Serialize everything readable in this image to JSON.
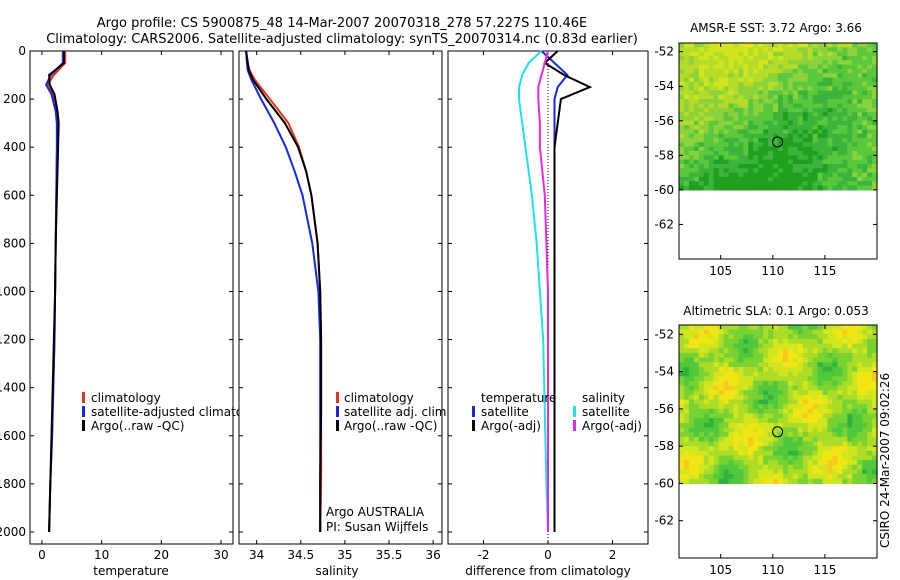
{
  "header": {
    "line1": "Argo profile: CS 5900875_48 14-Mar-2007 20070318_278 57.227S 110.46E",
    "line2": "Climatology: CARS2006. Satellite-adjusted climatology: synTS_20070314.nc (0.83d earlier)"
  },
  "footer_note": "CSIRO 24-Mar-2007 09:02:26",
  "colors": {
    "climatology": "#e8321e",
    "satellite": "#1428e6",
    "argo": "#000000",
    "cyan": "#22e0e8",
    "magenta": "#e628e6"
  },
  "chart_data": [
    {
      "type": "line",
      "panel": "temperature",
      "xlabel": "temperature",
      "xlim": [
        -2,
        32
      ],
      "ylim": [
        2050,
        0
      ],
      "xticks": [
        0,
        10,
        20,
        30
      ],
      "yticks": [
        0,
        200,
        400,
        600,
        800,
        1000,
        1200,
        1400,
        1600,
        1800,
        2000
      ],
      "depth": [
        0,
        50,
        100,
        140,
        180,
        250,
        300,
        400,
        600,
        800,
        1000,
        1200,
        1400,
        1600,
        1800,
        2000
      ],
      "series": [
        {
          "name": "climatology",
          "values": [
            3.9,
            3.9,
            2.0,
            0.9,
            1.8,
            2.4,
            2.5,
            2.5,
            2.4,
            2.3,
            2.2,
            2.1,
            1.9,
            1.7,
            1.4,
            1.2
          ]
        },
        {
          "name": "satellite-adjusted climatology",
          "values": [
            3.5,
            3.5,
            1.5,
            0.7,
            1.6,
            2.3,
            2.5,
            2.5,
            2.4,
            2.3,
            2.2,
            2.1,
            1.9,
            1.7,
            1.4,
            1.2
          ]
        },
        {
          "name": "Argo(..raw -QC)",
          "values": [
            3.7,
            3.7,
            1.2,
            1.3,
            2.1,
            2.6,
            2.8,
            2.7,
            2.5,
            2.3,
            2.2,
            2.0,
            1.8,
            1.6,
            1.4,
            1.2
          ]
        }
      ],
      "legend": [
        "climatology",
        "satellite-adjusted climatology",
        "Argo(..raw -QC)"
      ]
    },
    {
      "type": "line",
      "panel": "salinity",
      "xlabel": "salinity",
      "xlim": [
        33.8,
        36.1
      ],
      "ylim": [
        2050,
        0
      ],
      "xticks": [
        34,
        34.5,
        35,
        35.5,
        36
      ],
      "yticks": [
        0,
        200,
        400,
        600,
        800,
        1000,
        1200,
        1400,
        1600,
        1800,
        2000
      ],
      "depth": [
        0,
        50,
        80,
        120,
        200,
        300,
        400,
        500,
        600,
        800,
        1000,
        1200,
        1500,
        1800,
        2000
      ],
      "series": [
        {
          "name": "climatology",
          "values": [
            33.88,
            33.9,
            33.92,
            33.98,
            34.15,
            34.36,
            34.48,
            34.56,
            34.62,
            34.69,
            34.72,
            34.73,
            34.73,
            34.73,
            34.72
          ]
        },
        {
          "name": "satellite adj. clim.",
          "values": [
            33.88,
            33.89,
            33.9,
            33.94,
            34.05,
            34.2,
            34.33,
            34.43,
            34.52,
            34.63,
            34.7,
            34.72,
            34.72,
            34.72,
            34.72
          ]
        },
        {
          "name": "Argo(..raw -QC)",
          "values": [
            33.88,
            33.9,
            33.91,
            33.96,
            34.11,
            34.32,
            34.47,
            34.56,
            34.62,
            34.69,
            34.72,
            34.73,
            34.73,
            34.72,
            34.72
          ]
        }
      ],
      "legend": [
        "climatology",
        "satellite adj. clim.",
        "Argo(..raw -QC)"
      ],
      "annotation": [
        "Argo AUSTRALIA",
        "PI: Susan Wijffels"
      ]
    },
    {
      "type": "line",
      "panel": "difference",
      "xlabel": "difference from climatology",
      "xlim": [
        -3.1,
        3.1
      ],
      "ylim": [
        2050,
        0
      ],
      "xticks": [
        -2,
        0,
        2
      ],
      "yticks": [
        0,
        200,
        400,
        600,
        800,
        1000,
        1200,
        1400,
        1600,
        1800,
        2000
      ],
      "depth": [
        0,
        50,
        100,
        150,
        200,
        300,
        400,
        600,
        800,
        1000,
        1200,
        1500,
        1800,
        2000
      ],
      "series": [
        {
          "name": "temperature satellite",
          "values": [
            -0.2,
            0.2,
            0.6,
            0.3,
            0.2,
            0.2,
            0.2,
            0.2,
            0.2,
            0.2,
            0.2,
            0.2,
            0.2,
            0.2
          ]
        },
        {
          "name": "temperature Argo(-adj)",
          "values": [
            0.3,
            -0.1,
            0.5,
            1.3,
            0.4,
            0.3,
            0.2,
            0.2,
            0.2,
            0.2,
            0.2,
            0.2,
            0.2,
            0.2
          ]
        },
        {
          "name": "salinity satellite",
          "values": [
            -0.2,
            -0.6,
            -0.8,
            -0.9,
            -0.9,
            -0.8,
            -0.7,
            -0.5,
            -0.35,
            -0.25,
            -0.15,
            -0.1,
            -0.05,
            0.0
          ]
        },
        {
          "name": "salinity Argo(-adj)",
          "values": [
            0.0,
            -0.1,
            -0.2,
            -0.3,
            -0.3,
            -0.25,
            -0.25,
            -0.1,
            -0.05,
            0.0,
            0.0,
            0.0,
            0.0,
            0.0
          ]
        }
      ],
      "legend_groups": [
        {
          "title": "temperature",
          "items": [
            "satellite",
            "Argo(-adj)"
          ]
        },
        {
          "title": "salinity",
          "items": [
            "satellite",
            "Argo(-adj)"
          ]
        }
      ]
    },
    {
      "type": "heatmap",
      "panel": "sst_map",
      "title": "AMSR-E SST: 3.72 Argo: 3.66",
      "xlim": [
        101,
        120
      ],
      "ylim": [
        -64,
        -51.5
      ],
      "data_lat_min": -60,
      "xticks": [
        105,
        110,
        115
      ],
      "yticks": [
        -52,
        -54,
        -56,
        -58,
        -60,
        -62
      ],
      "marker": {
        "lon": 110.46,
        "lat": -57.227
      }
    },
    {
      "type": "heatmap",
      "panel": "sla_map",
      "title": "Altimetric SLA: 0.1 Argo: 0.053",
      "xlim": [
        101,
        120
      ],
      "ylim": [
        -64,
        -51.5
      ],
      "data_lat_min": -60,
      "xticks": [
        105,
        110,
        115
      ],
      "yticks": [
        -52,
        -54,
        -56,
        -58,
        -60,
        -62
      ],
      "marker": {
        "lon": 110.46,
        "lat": -57.227
      }
    }
  ]
}
